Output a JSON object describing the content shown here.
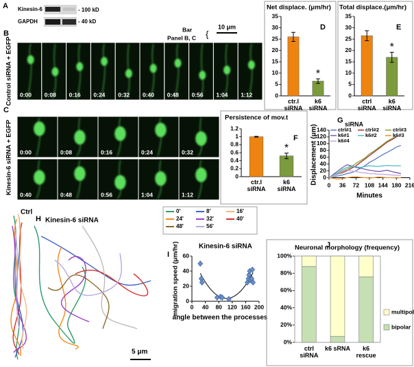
{
  "panel_a": {
    "label": "A",
    "rows": [
      {
        "name": "Kinesin-6",
        "size": "- 100 kD"
      },
      {
        "name": "GAPDH",
        "size": "- 40 kD"
      }
    ]
  },
  "scale_note": {
    "lines": [
      "Bar",
      "Panel B, C"
    ],
    "brace": "{",
    "scale": "10 μm"
  },
  "panel_b": {
    "label": "B",
    "condition": "Control siRNA + EGFP",
    "times": [
      "0:00",
      "0:08",
      "0:16",
      "0:24",
      "0:32",
      "0:40",
      "0:48",
      "0:56",
      "1:04",
      "1:12"
    ]
  },
  "panel_c": {
    "label": "C",
    "condition": "Kinesin-6 siRNA + EGFP",
    "times": [
      "0:00",
      "0:08",
      "0:16",
      "0:24",
      "0:32",
      "0:40",
      "0:48",
      "0:56",
      "1:04",
      "1:12"
    ]
  },
  "panel_h": {
    "label": "H",
    "ctrl": "Ctrl",
    "k6": "Kinesin-6 siRNA",
    "scale": "5 μm",
    "legend": [
      "0'",
      "8'",
      "16'",
      "24'",
      "32'",
      "40'",
      "48'",
      "56'"
    ],
    "legend_colors": [
      "#2e9b6a",
      "#3f63c4",
      "#f2b98a",
      "#ef8a1e",
      "#9a3fc8",
      "#d8302a",
      "#8a6a2a",
      "#b7a7e0"
    ]
  },
  "chart_data": [
    {
      "type": "bar",
      "letter": "D",
      "title": "Net displace. (μm/hr)",
      "categories": [
        "ctr.l siRNA",
        "k6 siRNA"
      ],
      "values": [
        26,
        6.5
      ],
      "errors": [
        2,
        1
      ],
      "colors": [
        "#ee8410",
        "#7b9b3c"
      ],
      "annotation": "*",
      "annotation_category": "k6 siRNA",
      "ylim": [
        0,
        35
      ],
      "yticks": [
        0,
        5,
        10,
        15,
        20,
        25,
        30,
        35
      ]
    },
    {
      "type": "bar",
      "letter": "E",
      "title": "Total displace.(μm/hr)",
      "categories": [
        "ctrl siRNA",
        "k6 siRNA"
      ],
      "values": [
        26.5,
        17
      ],
      "errors": [
        2.2,
        2.2
      ],
      "colors": [
        "#ee8410",
        "#7b9b3c"
      ],
      "annotation": "*",
      "annotation_category": "k6 siRNA",
      "ylim": [
        0,
        35
      ],
      "yticks": [
        0,
        5,
        10,
        15,
        20,
        25,
        30,
        35
      ]
    },
    {
      "type": "bar",
      "letter": "F",
      "title": "Persistence of mov.t",
      "categories": [
        "ctr.l siRNA",
        "k6 siRNA"
      ],
      "values": [
        1.0,
        0.52
      ],
      "errors": [
        0.01,
        0.07
      ],
      "colors": [
        "#ee8410",
        "#7b9b3c"
      ],
      "annotation": "*",
      "annotation_category": "k6 siRNA",
      "ylim": [
        0,
        1.2
      ],
      "yticks": [
        0,
        0.2,
        0.4,
        0.6,
        0.8,
        1,
        1.2
      ]
    },
    {
      "type": "line",
      "letter": "G",
      "legend_title": "siRNA",
      "x_label": "Minutes",
      "y_label": "Displacement (μm)",
      "x": [
        0,
        12,
        24,
        36,
        48,
        60,
        72,
        84,
        96,
        108,
        120,
        132,
        144,
        156,
        168,
        180,
        192
      ],
      "series": [
        {
          "name": "ctrl#1",
          "color": "#5b7bbf",
          "values": [
            0,
            3,
            5,
            8,
            12,
            15,
            20,
            28,
            35,
            45,
            52,
            60,
            68,
            75,
            82,
            90,
            95
          ]
        },
        {
          "name": "ctrl#2",
          "color": "#a0302c",
          "values": [
            0,
            5,
            10,
            15,
            20,
            28,
            35,
            45,
            55,
            65,
            75,
            85,
            95,
            105,
            112,
            120,
            null
          ]
        },
        {
          "name": "ctrl#3",
          "color": "#8aa040",
          "values": [
            0,
            4,
            12,
            20,
            25,
            32,
            42,
            50,
            58,
            70,
            78,
            88,
            98,
            108,
            115,
            122,
            null
          ]
        },
        {
          "name": "k6#1",
          "color": "#7a5aa8",
          "values": [
            0,
            10,
            20,
            30,
            38,
            35,
            30,
            28,
            25,
            22,
            20,
            18,
            20,
            22,
            18,
            15,
            12
          ]
        },
        {
          "name": "k6#2",
          "color": "#4bb8c8",
          "values": [
            0,
            8,
            15,
            25,
            30,
            35,
            32,
            30,
            33,
            35,
            34,
            33,
            35,
            36,
            35,
            35,
            35
          ]
        },
        {
          "name": "k6#3",
          "color": "#e8902c",
          "values": [
            0,
            -2,
            -4,
            -3,
            0,
            2,
            3,
            1,
            0,
            -1,
            0,
            2,
            1,
            0,
            0,
            -1,
            0
          ]
        },
        {
          "name": "k6#4",
          "color": "#c8a8e0",
          "values": [
            0,
            5,
            10,
            18,
            22,
            20,
            18,
            15,
            14,
            12,
            12,
            10,
            10,
            9,
            8,
            7,
            6
          ]
        }
      ],
      "xlim": [
        0,
        216
      ],
      "xticks": [
        0,
        36,
        72,
        108,
        144,
        180,
        216
      ],
      "ylim": [
        -5,
        140
      ],
      "yticks": [
        0,
        20,
        40,
        60,
        80,
        100,
        120,
        140
      ]
    },
    {
      "type": "scatter",
      "letter": "I",
      "title": "Kinesin-6 siRNA",
      "x_label": "angle between the processes",
      "y_label": "migration speed (μm/hr)",
      "x": [
        25,
        28,
        30,
        75,
        85,
        90,
        110,
        165,
        168,
        170,
        172,
        175,
        178,
        180,
        182
      ],
      "y": [
        50,
        30,
        25,
        5,
        6,
        5,
        3,
        25,
        30,
        35,
        40,
        28,
        30,
        42,
        25
      ],
      "color": "#6a8fc8",
      "trendline": "polynomial",
      "xlim": [
        0,
        200
      ],
      "xticks": [
        0,
        40,
        80,
        120,
        160,
        200
      ],
      "ylim": [
        0,
        60
      ],
      "yticks": [
        0,
        20,
        40,
        60
      ]
    },
    {
      "type": "stacked_bar",
      "letter": "J",
      "title": "Neuronal morphology  (frequency)",
      "categories": [
        "ctrl siRNA",
        "k6 sRNA",
        "k6 rescue"
      ],
      "series": [
        {
          "name": "bipolar",
          "color": "#c6e0b4",
          "values": [
            88,
            7,
            76
          ]
        },
        {
          "name": "multipolar",
          "color": "#ffffcc",
          "values": [
            12,
            93,
            24
          ]
        }
      ],
      "ylim": [
        0,
        100
      ],
      "yticks": [
        {
          "value": 0,
          "label": "0%"
        },
        {
          "value": 20,
          "label": "20%"
        },
        {
          "value": 40,
          "label": "40%"
        },
        {
          "value": 60,
          "label": "60%"
        },
        {
          "value": 80,
          "label": "80%"
        },
        {
          "value": 100,
          "label": "100%"
        }
      ]
    }
  ]
}
